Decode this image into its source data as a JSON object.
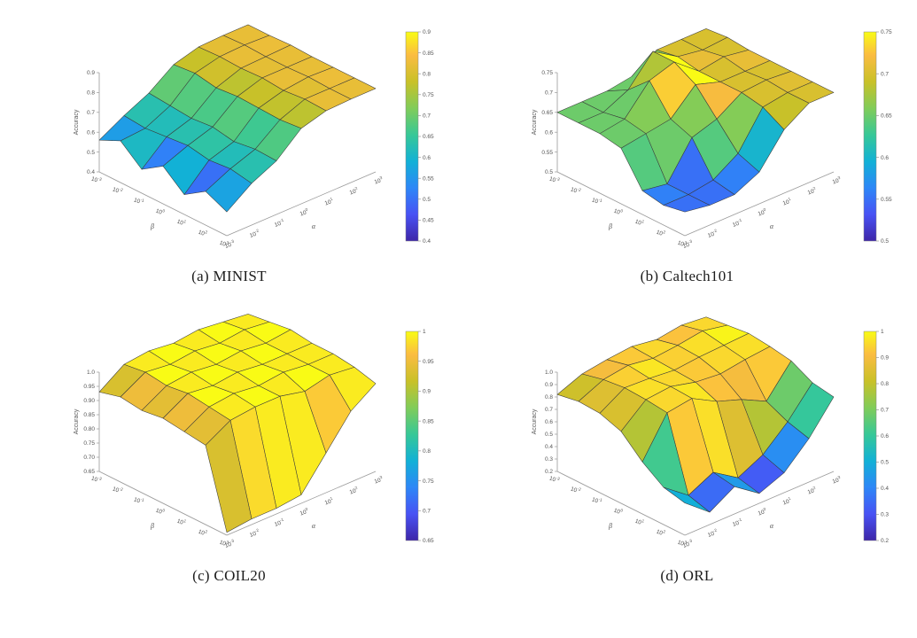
{
  "figure": {
    "background": "#ffffff",
    "colormap": {
      "name": "parula",
      "anchors": [
        [
          0.0,
          "#3E26A8"
        ],
        [
          0.127,
          "#4852F4"
        ],
        [
          0.254,
          "#2D87F7"
        ],
        [
          0.381,
          "#12B1D6"
        ],
        [
          0.508,
          "#37C897"
        ],
        [
          0.635,
          "#81CC59"
        ],
        [
          0.762,
          "#C9C128"
        ],
        [
          0.889,
          "#FBBC41"
        ],
        [
          1.0,
          "#F9FB15"
        ]
      ],
      "edge_color": "#3a3a3a",
      "axis_color": "#999999",
      "tick_text_color": "#555555"
    }
  },
  "chart_data": [
    {
      "id": "a",
      "type": "surface",
      "dataset": "MINIST",
      "caption": "(a) MINIST",
      "zlabel": "Accuracy",
      "xlabel": "α",
      "ylabel": "β",
      "x_tick_exponents": [
        -3,
        -2,
        -1,
        0,
        1,
        2,
        3
      ],
      "y_tick_exponents": [
        -3,
        -2,
        -1,
        0,
        1,
        2,
        3
      ],
      "zlim": [
        0.4,
        0.9
      ],
      "z_ticks": [
        "0.4",
        "0.5",
        "0.6",
        "0.7",
        "0.8",
        "0.9"
      ],
      "clim": [
        0.4,
        0.9
      ],
      "colorbar_ticks": [
        "0.9",
        "0.85",
        "0.8",
        "0.75",
        "0.7",
        "0.65",
        "0.6",
        "0.55",
        "0.5",
        "0.45",
        "0.4"
      ],
      "z_grid": [
        [
          0.56,
          0.63,
          0.69,
          0.78,
          0.815,
          0.82,
          0.82
        ],
        [
          0.61,
          0.62,
          0.68,
          0.79,
          0.82,
          0.825,
          0.82
        ],
        [
          0.52,
          0.63,
          0.67,
          0.77,
          0.815,
          0.82,
          0.825
        ],
        [
          0.59,
          0.64,
          0.68,
          0.78,
          0.82,
          0.82,
          0.82
        ],
        [
          0.5,
          0.62,
          0.66,
          0.775,
          0.81,
          0.825,
          0.82
        ],
        [
          0.57,
          0.63,
          0.675,
          0.77,
          0.82,
          0.82,
          0.82
        ],
        [
          0.52,
          0.61,
          0.67,
          0.78,
          0.815,
          0.82,
          0.82
        ]
      ]
    },
    {
      "id": "b",
      "type": "surface",
      "dataset": "Caltech101",
      "caption": "(b) Caltech101",
      "zlabel": "Accuracy",
      "xlabel": "α",
      "ylabel": "β",
      "x_tick_exponents": [
        -3,
        -2,
        -1,
        0,
        1,
        2,
        3
      ],
      "y_tick_exponents": [
        -3,
        -2,
        -1,
        0,
        1,
        2,
        3
      ],
      "zlim": [
        0.5,
        0.75
      ],
      "z_ticks": [
        "0.5",
        "0.55",
        "0.6",
        "0.65",
        "0.7",
        "0.75"
      ],
      "clim": [
        0.5,
        0.75
      ],
      "colorbar_ticks": [
        "0.75",
        "0.7",
        "0.65",
        "0.6",
        "0.55",
        "0.5"
      ],
      "z_grid": [
        [
          0.65,
          0.65,
          0.65,
          0.66,
          0.7,
          0.7,
          0.7
        ],
        [
          0.65,
          0.65,
          0.68,
          0.75,
          0.71,
          0.7,
          0.705
        ],
        [
          0.65,
          0.66,
          0.73,
          0.75,
          0.7,
          0.71,
          0.7
        ],
        [
          0.64,
          0.65,
          0.66,
          0.72,
          0.7,
          0.7,
          0.7
        ],
        [
          0.56,
          0.55,
          0.64,
          0.66,
          0.7,
          0.705,
          0.7
        ],
        [
          0.55,
          0.55,
          0.56,
          0.6,
          0.69,
          0.7,
          0.7
        ],
        [
          0.56,
          0.55,
          0.55,
          0.58,
          0.66,
          0.7,
          0.7
        ]
      ]
    },
    {
      "id": "c",
      "type": "surface",
      "dataset": "COIL20",
      "caption": "(c) COIL20",
      "zlabel": "Accuracy",
      "xlabel": "α",
      "ylabel": "β",
      "x_tick_exponents": [
        -3,
        -2,
        -1,
        0,
        1,
        2,
        3
      ],
      "y_tick_exponents": [
        -3,
        -2,
        -1,
        0,
        1,
        2,
        3
      ],
      "zlim": [
        0.65,
        1.0
      ],
      "z_ticks": [
        "0.65",
        "0.70",
        "0.75",
        "0.80",
        "0.85",
        "0.90",
        "0.95",
        "1.0"
      ],
      "clim": [
        0.65,
        1.0
      ],
      "colorbar_ticks": [
        "1",
        "0.95",
        "0.9",
        "0.85",
        "0.8",
        "0.75",
        "0.7",
        "0.65"
      ],
      "z_grid": [
        [
          0.93,
          0.99,
          1.0,
          0.99,
          1.0,
          0.99,
          0.98
        ],
        [
          0.95,
          1.0,
          0.99,
          1.0,
          0.99,
          1.0,
          0.99
        ],
        [
          0.94,
          0.99,
          1.0,
          0.99,
          1.0,
          0.99,
          1.0
        ],
        [
          0.95,
          1.0,
          0.99,
          1.0,
          0.99,
          0.99,
          0.99
        ],
        [
          0.94,
          0.99,
          1.0,
          0.99,
          1.0,
          0.99,
          0.99
        ],
        [
          0.93,
          0.98,
          0.99,
          0.99,
          0.97,
          0.99,
          0.98
        ],
        [
          0.66,
          0.67,
          0.67,
          0.68,
          0.79,
          0.9,
          0.96
        ]
      ]
    },
    {
      "id": "d",
      "type": "surface",
      "dataset": "ORL",
      "caption": "(d) ORL",
      "zlabel": "Accuracy",
      "xlabel": "α",
      "ylabel": "β",
      "x_tick_exponents": [
        -3,
        -2,
        -1,
        0,
        1,
        2,
        3
      ],
      "y_tick_exponents": [
        -3,
        -2,
        -1,
        0,
        1,
        2,
        3
      ],
      "zlim": [
        0.2,
        1.0
      ],
      "z_ticks": [
        "0.2",
        "0.3",
        "0.4",
        "0.5",
        "0.6",
        "0.7",
        "0.8",
        "0.9",
        "1.0"
      ],
      "clim": [
        0.2,
        1.0
      ],
      "colorbar_ticks": [
        "1",
        "0.9",
        "0.8",
        "0.7",
        "0.6",
        "0.5",
        "0.4",
        "0.3",
        "0.2"
      ],
      "z_grid": [
        [
          0.82,
          0.9,
          0.93,
          0.95,
          0.92,
          0.95,
          0.93
        ],
        [
          0.85,
          0.94,
          0.97,
          0.94,
          0.96,
          0.99,
          0.95
        ],
        [
          0.84,
          0.96,
          0.95,
          0.93,
          0.95,
          0.96,
          0.97
        ],
        [
          0.78,
          0.95,
          0.97,
          0.92,
          0.9,
          0.93,
          0.95
        ],
        [
          0.62,
          0.93,
          0.96,
          0.85,
          0.78,
          0.68,
          0.92
        ],
        [
          0.5,
          0.35,
          0.45,
          0.32,
          0.42,
          0.6,
          0.83
        ],
        [
          0.46,
          0.3,
          0.42,
          0.28,
          0.36,
          0.55,
          0.8
        ]
      ]
    }
  ]
}
